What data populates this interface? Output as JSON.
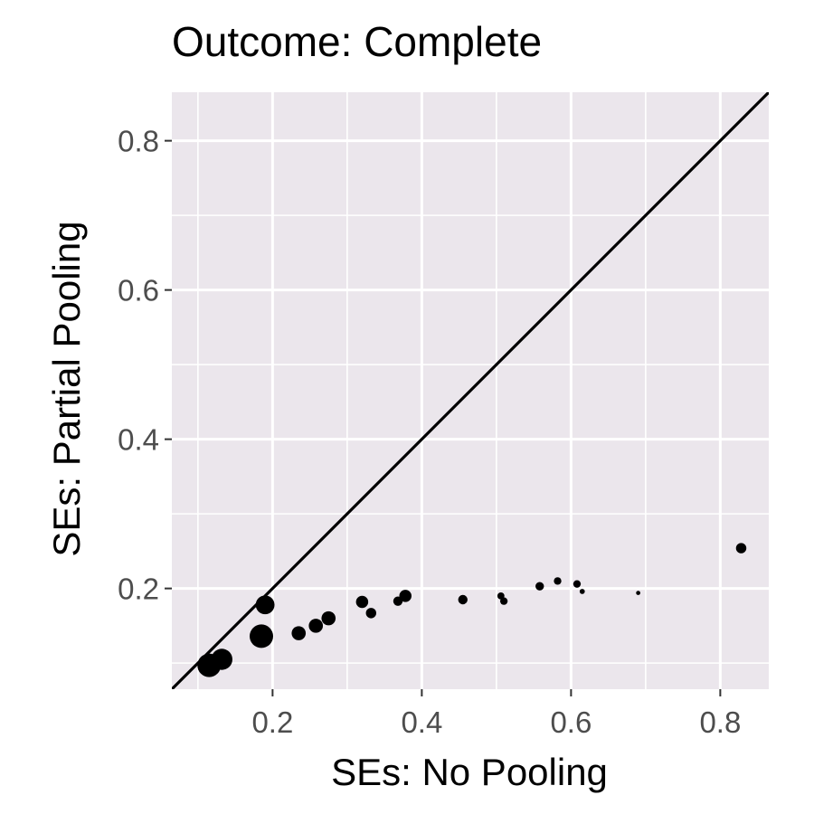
{
  "chart_data": {
    "type": "scatter",
    "title": "Outcome: Complete",
    "xlabel": "SEs: No Pooling",
    "ylabel": "SEs: Partial Pooling",
    "xlim": [
      0.065,
      0.865
    ],
    "ylim": [
      0.065,
      0.865
    ],
    "x_ticks": [
      0.2,
      0.4,
      0.6,
      0.8
    ],
    "x_tick_labels": [
      "0.2",
      "0.4",
      "0.6",
      "0.8"
    ],
    "y_ticks": [
      0.2,
      0.4,
      0.6,
      0.8
    ],
    "y_tick_labels": [
      "0.2",
      "0.4",
      "0.6",
      "0.8"
    ],
    "reference_line": {
      "slope": 1,
      "intercept": 0
    },
    "grid": true,
    "legend": "none",
    "colors": {
      "panel": "#ebe6ec",
      "grid": "#ffffff",
      "points": "#000000",
      "line": "#000000",
      "tick_text": "#4d4d4d"
    },
    "points": [
      {
        "x": 0.115,
        "y": 0.097,
        "size": 5
      },
      {
        "x": 0.132,
        "y": 0.105,
        "size": 4.5
      },
      {
        "x": 0.185,
        "y": 0.136,
        "size": 5
      },
      {
        "x": 0.19,
        "y": 0.178,
        "size": 4
      },
      {
        "x": 0.235,
        "y": 0.14,
        "size": 3
      },
      {
        "x": 0.258,
        "y": 0.15,
        "size": 3
      },
      {
        "x": 0.275,
        "y": 0.16,
        "size": 3
      },
      {
        "x": 0.32,
        "y": 0.182,
        "size": 2.6
      },
      {
        "x": 0.332,
        "y": 0.167,
        "size": 2.2
      },
      {
        "x": 0.368,
        "y": 0.183,
        "size": 2
      },
      {
        "x": 0.378,
        "y": 0.19,
        "size": 2.6
      },
      {
        "x": 0.455,
        "y": 0.185,
        "size": 2
      },
      {
        "x": 0.506,
        "y": 0.19,
        "size": 1.5
      },
      {
        "x": 0.51,
        "y": 0.183,
        "size": 1.6
      },
      {
        "x": 0.558,
        "y": 0.203,
        "size": 1.8
      },
      {
        "x": 0.582,
        "y": 0.21,
        "size": 1.6
      },
      {
        "x": 0.608,
        "y": 0.206,
        "size": 1.6
      },
      {
        "x": 0.615,
        "y": 0.196,
        "size": 1.1
      },
      {
        "x": 0.69,
        "y": 0.194,
        "size": 0.9
      },
      {
        "x": 0.828,
        "y": 0.254,
        "size": 2.2
      }
    ]
  }
}
